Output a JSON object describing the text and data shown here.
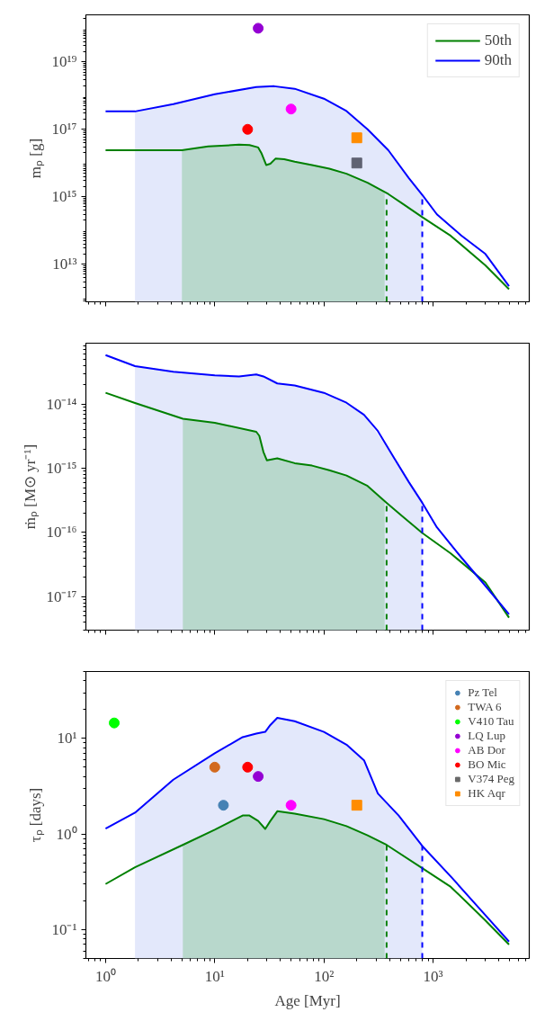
{
  "chart_data": [
    {
      "type": "line",
      "log": "xy",
      "grid": false,
      "legend": "top right",
      "tick_labels": "y",
      "ylabel": "mₚ [g]",
      "xlim": [
        0.66,
        7600
      ],
      "ylim": [
        760000000000.0,
        2.5e+20
      ],
      "xticks": [
        {
          "value": 1,
          "label": null
        },
        {
          "value": 10,
          "label": null
        },
        {
          "value": 100,
          "label": null
        },
        {
          "value": 1000,
          "label": null
        }
      ],
      "yticks": [
        {
          "value": 10000000000000.0,
          "label": "10¹³"
        },
        {
          "value": 1000000000000000.0,
          "label": "10¹⁵"
        },
        {
          "value": 1e+17,
          "label": "10¹⁷"
        },
        {
          "value": 1e+19,
          "label": "10¹⁹"
        }
      ],
      "series": [
        {
          "type": "area",
          "color": "#e3e8fb",
          "x": [
            1.86,
            4.17,
            10,
            24,
            35,
            54,
            100,
            161,
            251,
            389,
            603,
            796
          ],
          "values": [
            3.4e+17,
            5.6e+17,
            1.1e+18,
            1.8e+18,
            1.9e+18,
            1.6e+18,
            8.1e+17,
            3.5e+17,
            1e+17,
            2.4e+16,
            3500000000000000.0,
            1070000000000000.0
          ]
        },
        {
          "type": "area",
          "color": "#b8d8cc",
          "x": [
            5.0,
            8.7,
            16.7,
            20.8,
            25.0,
            26.9,
            29.6,
            32.3,
            36.0,
            43.3,
            54,
            77.8,
            112,
            161,
            251,
            360
          ],
          "values": [
            2.4e+16,
            3.1e+16,
            3.5e+16,
            3.4e+16,
            2.9e+16,
            1.9e+16,
            8700000000000000.0,
            9500000000000000.0,
            1.35e+16,
            1.3e+16,
            1.1e+16,
            8700000000000000.0,
            6800000000000000.0,
            4800000000000000.0,
            2600000000000000.0,
            1300000000000000.0
          ]
        },
        {
          "type": "line",
          "name": "50th",
          "color": "#008000",
          "x": [
            1,
            5.0,
            8.7,
            16.7,
            20.8,
            25.0,
            26.9,
            29.6,
            32.3,
            36.0,
            43.3,
            54,
            77.8,
            112,
            161,
            251,
            389,
            521,
            807,
            1452,
            3014,
            4960
          ],
          "values": [
            2.4e+16,
            2.4e+16,
            3.1e+16,
            3.5e+16,
            3.4e+16,
            2.9e+16,
            1.9e+16,
            8700000000000000.0,
            9500000000000000.0,
            1.35e+16,
            1.3e+16,
            1.1e+16,
            8700000000000000.0,
            6800000000000000.0,
            4800000000000000.0,
            2600000000000000.0,
            1200000000000000.0,
            630000000000000.0,
            240000000000000.0,
            69000000000000.0,
            9200000000000.0,
            1800000000000.0
          ]
        },
        {
          "type": "line",
          "name": "90th",
          "color": "#0000ff",
          "x": [
            1,
            1.86,
            4.17,
            10,
            24,
            35,
            54,
            100,
            161,
            251,
            389,
            603,
            807,
            1083,
            1808,
            3014,
            4960
          ],
          "values": [
            3.4e+17,
            3.4e+17,
            5.6e+17,
            1.1e+18,
            1.8e+18,
            1.9e+18,
            1.6e+18,
            8.1e+17,
            3.5e+17,
            1e+17,
            2.4e+16,
            3500000000000000.0,
            1070000000000000.0,
            300000000000000.0,
            71000000000000.0,
            20000000000000.0,
            2200000000000.0
          ]
        },
        {
          "type": "line",
          "line_style": "dashed",
          "color": "#008000",
          "x": [
            375,
            375
          ],
          "values": [
            760000000000.0,
            1200000000000000.0
          ]
        },
        {
          "type": "line",
          "line_style": "dashed",
          "color": "#0000ff",
          "x": [
            796,
            796
          ],
          "values": [
            760000000000.0,
            1070000000000000.0
          ]
        },
        {
          "type": "scatter",
          "marker": "circle",
          "color": "#9400d3",
          "x": [
            25
          ],
          "values": [
            1e+20
          ]
        },
        {
          "type": "scatter",
          "marker": "circle",
          "color": "#ff00ff",
          "x": [
            50
          ],
          "values": [
            4e+17
          ]
        },
        {
          "type": "scatter",
          "marker": "circle",
          "color": "#ff0000",
          "x": [
            20
          ],
          "values": [
            1e+17
          ]
        },
        {
          "type": "scatter",
          "marker": "square",
          "color": "#ff8c00",
          "x": [
            200
          ],
          "values": [
            5.6e+16
          ]
        },
        {
          "type": "scatter",
          "marker": "square",
          "color": "#5f6272",
          "x": [
            200
          ],
          "values": [
            1e+16
          ]
        }
      ]
    },
    {
      "type": "line",
      "log": "xy",
      "grid": false,
      "tick_labels": "y",
      "ylabel": "ṁₚ [M⊙ yr⁻¹]",
      "xlim": [
        0.66,
        7600
      ],
      "ylim": [
        3e-18,
        8.9e-14
      ],
      "xticks": [
        {
          "value": 1,
          "label": null
        },
        {
          "value": 10,
          "label": null
        },
        {
          "value": 100,
          "label": null
        },
        {
          "value": 1000,
          "label": null
        }
      ],
      "yticks": [
        {
          "value": 1e-17,
          "label": "10⁻¹⁷"
        },
        {
          "value": 1e-16,
          "label": "10⁻¹⁶"
        },
        {
          "value": 1e-15,
          "label": "10⁻¹⁵"
        },
        {
          "value": 1e-14,
          "label": "10⁻¹⁴"
        }
      ],
      "series": [
        {
          "type": "area",
          "color": "#e3e8fb",
          "x": [
            1.86,
            4.17,
            10,
            16.7,
            24,
            27.9,
            37.4,
            54,
            100,
            161,
            233,
            419,
            603,
            796
          ],
          "values": [
            3.9e-14,
            3.2e-14,
            2.8e-14,
            2.7e-14,
            2.9e-14,
            2.7e-14,
            2.1e-14,
            1.95e-14,
            1.5e-14,
            1.05e-14,
            6.8e-15,
            1.65e-15,
            6e-16,
            2.9e-16
          ]
        },
        {
          "type": "area",
          "color": "#b8d8cc",
          "x": [
            5.1,
            10,
            24,
            25.6,
            27.9,
            30.0,
            37.4,
            54,
            77.8,
            112,
            161,
            251,
            360
          ],
          "values": [
            5.9e-15,
            5.1e-15,
            3.7e-15,
            3.2e-15,
            1.8e-15,
            1.33e-15,
            1.43e-15,
            1.2e-15,
            1.1e-15,
            9.3e-16,
            7.7e-16,
            5.3e-16,
            3.1e-16
          ]
        },
        {
          "type": "line",
          "color": "#008000",
          "x": [
            1,
            1.86,
            5.1,
            10,
            24,
            25.6,
            27.9,
            30.0,
            37.4,
            54,
            77.8,
            112,
            161,
            251,
            375,
            521,
            796,
            1452,
            3014,
            4960
          ],
          "values": [
            1.5e-14,
            1.04e-14,
            5.9e-15,
            5.1e-15,
            3.7e-15,
            3.2e-15,
            1.8e-15,
            1.33e-15,
            1.43e-15,
            1.2e-15,
            1.1e-15,
            9.3e-16,
            7.7e-16,
            5.3e-16,
            2.9e-16,
            1.8e-16,
            9.8e-17,
            4.7e-17,
            1.66e-17,
            4.7e-18
          ]
        },
        {
          "type": "line",
          "color": "#0000ff",
          "x": [
            1,
            1.86,
            4.17,
            10,
            16.7,
            24,
            27.9,
            37.4,
            54,
            100,
            161,
            233,
            312,
            419,
            603,
            796,
            1083,
            1808,
            3014,
            4960
          ],
          "values": [
            5.8e-14,
            3.9e-14,
            3.2e-14,
            2.8e-14,
            2.7e-14,
            2.9e-14,
            2.7e-14,
            2.1e-14,
            1.95e-14,
            1.5e-14,
            1.05e-14,
            6.8e-15,
            3.8e-15,
            1.65e-15,
            6e-16,
            2.9e-16,
            1.2e-16,
            4.1e-17,
            1.47e-17,
            5.3e-18
          ]
        },
        {
          "type": "line",
          "line_style": "dashed",
          "color": "#008000",
          "x": [
            375,
            375
          ],
          "values": [
            3e-18,
            2.9e-16
          ]
        },
        {
          "type": "line",
          "line_style": "dashed",
          "color": "#0000ff",
          "x": [
            796,
            796
          ],
          "values": [
            3e-18,
            2.9e-16
          ]
        }
      ]
    },
    {
      "type": "line",
      "log": "xy",
      "grid": false,
      "legend": "top right",
      "xlabel": "Age [Myr]",
      "ylabel": "τₚ [days]",
      "xlim": [
        0.66,
        7600
      ],
      "ylim": [
        0.05,
        50
      ],
      "xticks": [
        {
          "value": 1,
          "label": "10⁰"
        },
        {
          "value": 10,
          "label": "10¹"
        },
        {
          "value": 100,
          "label": "10²"
        },
        {
          "value": 1000,
          "label": "10³"
        }
      ],
      "yticks": [
        {
          "value": 0.1,
          "label": "10⁻¹"
        },
        {
          "value": 1,
          "label": "10⁰"
        },
        {
          "value": 10,
          "label": "10¹"
        }
      ],
      "series": [
        {
          "type": "area",
          "color": "#e3e8fb",
          "x": [
            1.86,
            4.17,
            10,
            18.0,
            24,
            29.0,
            32.3,
            37.4,
            54,
            100,
            161,
            233,
            312,
            484,
            796
          ],
          "values": [
            1.67,
            3.7,
            7.0,
            10.3,
            11.2,
            11.7,
            13.8,
            16.4,
            15.1,
            11.7,
            8.6,
            5.9,
            2.65,
            1.56,
            0.75
          ]
        },
        {
          "type": "area",
          "color": "#b8d8cc",
          "x": [
            5.1,
            10,
            18.0,
            20.8,
            25,
            29.0,
            32.3,
            37.4,
            54,
            100,
            161,
            251,
            360
          ],
          "values": [
            0.77,
            1.11,
            1.56,
            1.56,
            1.37,
            1.13,
            1.37,
            1.73,
            1.63,
            1.43,
            1.21,
            0.97,
            0.79
          ]
        },
        {
          "type": "line",
          "color": "#008000",
          "x": [
            1,
            1.86,
            5.1,
            10,
            18.0,
            20.8,
            25,
            29.0,
            32.3,
            37.4,
            54,
            100,
            161,
            251,
            375,
            796,
            1452,
            3014,
            4960
          ],
          "values": [
            0.3,
            0.45,
            0.77,
            1.11,
            1.56,
            1.56,
            1.37,
            1.13,
            1.37,
            1.73,
            1.63,
            1.43,
            1.21,
            0.97,
            0.77,
            0.44,
            0.28,
            0.125,
            0.07
          ]
        },
        {
          "type": "line",
          "color": "#0000ff",
          "x": [
            1,
            1.86,
            4.17,
            10,
            18.0,
            24,
            29.0,
            32.3,
            37.4,
            54,
            100,
            161,
            233,
            312,
            484,
            796,
            1452,
            3014,
            4960
          ],
          "values": [
            1.14,
            1.67,
            3.7,
            7.0,
            10.3,
            11.2,
            11.7,
            13.8,
            16.4,
            15.1,
            11.7,
            8.6,
            5.9,
            2.65,
            1.56,
            0.75,
            0.36,
            0.142,
            0.075
          ]
        },
        {
          "type": "line",
          "line_style": "dashed",
          "color": "#008000",
          "x": [
            375,
            375
          ],
          "values": [
            0.05,
            0.77
          ]
        },
        {
          "type": "line",
          "line_style": "dashed",
          "color": "#0000ff",
          "x": [
            796,
            796
          ],
          "values": [
            0.05,
            0.75
          ]
        },
        {
          "type": "scatter",
          "marker": "circle",
          "name": "Pz Tel",
          "color": "#4682b4",
          "x": [
            12
          ],
          "values": [
            2.0
          ]
        },
        {
          "type": "scatter",
          "marker": "circle",
          "name": "TWA 6",
          "color": "#d2691e",
          "x": [
            10
          ],
          "values": [
            5.0
          ]
        },
        {
          "type": "scatter",
          "marker": "circle",
          "name": "V410 Tau",
          "color": "#00ff00",
          "x": [
            1.2
          ],
          "values": [
            14.5
          ]
        },
        {
          "type": "scatter",
          "marker": "circle",
          "name": "LQ Lup",
          "color": "#9400d3",
          "x": [
            25
          ],
          "values": [
            4.0
          ]
        },
        {
          "type": "scatter",
          "marker": "circle",
          "name": "AB Dor",
          "color": "#ff00ff",
          "x": [
            50
          ],
          "values": [
            2.0
          ]
        },
        {
          "type": "scatter",
          "marker": "circle",
          "name": "BO Mic",
          "color": "#ff0000",
          "x": [
            20
          ],
          "values": [
            5.0
          ]
        },
        {
          "type": "scatter",
          "marker": "square",
          "name": "V374 Peg",
          "color": "#696969",
          "x": [
            null
          ],
          "values": [
            null
          ]
        },
        {
          "type": "scatter",
          "marker": "square",
          "name": "HK Aqr",
          "color": "#ff8c00",
          "x": [
            200
          ],
          "values": [
            2.0
          ]
        }
      ]
    }
  ]
}
